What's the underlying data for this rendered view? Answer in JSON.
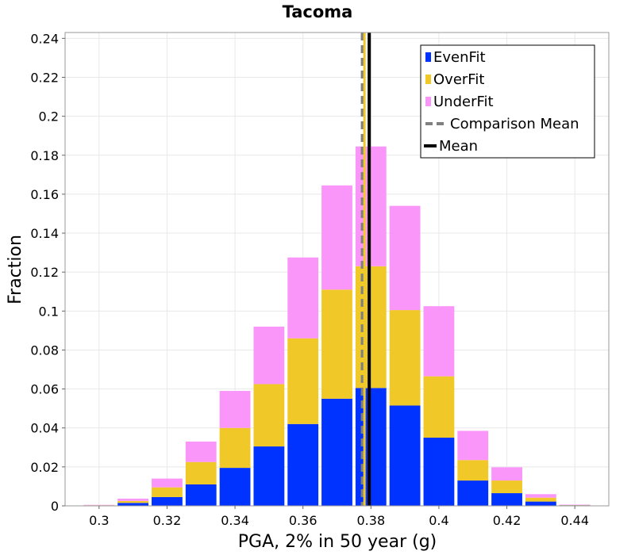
{
  "chart_data": {
    "type": "bar",
    "stacked": true,
    "title": "Tacoma",
    "xlabel": "PGA, 2% in 50 year (g)",
    "ylabel": "Fraction",
    "xlim": [
      0.29,
      0.45
    ],
    "ylim": [
      0,
      0.243
    ],
    "grid": true,
    "legend_position": "top-right",
    "bin_width": 0.01,
    "bin_centers": [
      0.3,
      0.31,
      0.32,
      0.33,
      0.34,
      0.35,
      0.36,
      0.37,
      0.38,
      0.39,
      0.4,
      0.41,
      0.42,
      0.43,
      0.44
    ],
    "series": [
      {
        "name": "EvenFit",
        "color": "#0033ff",
        "values": [
          0.0002,
          0.0015,
          0.0045,
          0.011,
          0.0195,
          0.0305,
          0.042,
          0.055,
          0.0605,
          0.0515,
          0.035,
          0.013,
          0.0065,
          0.0022,
          0.0003
        ]
      },
      {
        "name": "OverFit",
        "color": "#f0c828",
        "values": [
          0.0001,
          0.001,
          0.005,
          0.0115,
          0.0205,
          0.032,
          0.044,
          0.056,
          0.0625,
          0.049,
          0.0315,
          0.0105,
          0.0065,
          0.002,
          0.0001
        ]
      },
      {
        "name": "UnderFit",
        "color": "#fa96fa",
        "values": [
          0.0002,
          0.0012,
          0.0045,
          0.0105,
          0.019,
          0.0295,
          0.0415,
          0.0535,
          0.0615,
          0.0535,
          0.036,
          0.015,
          0.0068,
          0.0018,
          0.0002
        ]
      }
    ],
    "lines": [
      {
        "name": "Comparison Mean",
        "x": 0.3775,
        "color": "#808080",
        "style": "dashed"
      },
      {
        "name": "Mean",
        "x": 0.3795,
        "color": "#000000",
        "style": "solid",
        "accent_color": "#f0c828"
      }
    ],
    "xticks": [
      "0.3",
      "0.32",
      "0.34",
      "0.36",
      "0.38",
      "0.4",
      "0.42",
      "0.44"
    ],
    "yticks": [
      "0",
      "0.02",
      "0.04",
      "0.06",
      "0.08",
      "0.1",
      "0.12",
      "0.14",
      "0.16",
      "0.18",
      "0.2",
      "0.22",
      "0.24"
    ],
    "legend": [
      "EvenFit",
      "OverFit",
      "UnderFit",
      "Comparison Mean",
      "Mean"
    ]
  }
}
